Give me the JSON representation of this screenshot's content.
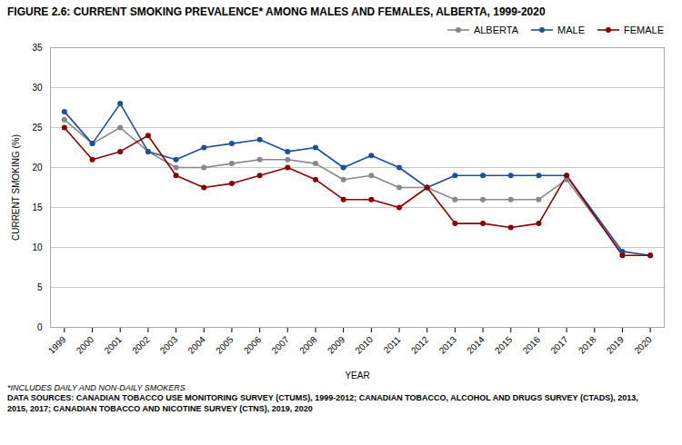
{
  "chart_data": {
    "type": "line",
    "title": "FIGURE 2.6: CURRENT SMOKING PREVALENCE* AMONG MALES AND FEMALES, ALBERTA, 1999-2020",
    "xlabel": "YEAR",
    "ylabel": "CURRENT SMOKING (%)",
    "annotations": [
      "*INCLUDES DAILY AND NON-DAILY SMOKERS",
      "DATA SOURCES: CANADIAN TOBACCO USE MONITORING SURVEY (CTUMS), 1999-2012; CANADIAN TOBACCO, ALCOHOL AND DRUGS SURVEY (CTADS), 2013,\n2015, 2017; CANADIAN TOBACCO AND NICOTINE SURVEY (CTNS), 2019, 2020"
    ],
    "x": [
      1999,
      2000,
      2001,
      2002,
      2003,
      2004,
      2005,
      2006,
      2007,
      2008,
      2009,
      2010,
      2011,
      2012,
      2013,
      2014,
      2015,
      2016,
      2017,
      2019,
      2020
    ],
    "series": [
      {
        "name": "ALBERTA",
        "color": "#888888",
        "marker": "circle",
        "values": [
          26.0,
          23.0,
          25.0,
          22.0,
          20.0,
          20.0,
          20.5,
          21.0,
          21.0,
          20.5,
          18.5,
          19.0,
          17.5,
          17.5,
          16.0,
          16.0,
          16.0,
          16.0,
          18.5,
          9.2,
          null
        ]
      },
      {
        "name": "MALE",
        "color": "#1a4f9c",
        "marker": "circle",
        "values": [
          27.0,
          23.0,
          28.0,
          22.0,
          21.0,
          22.5,
          23.0,
          23.5,
          22.0,
          22.5,
          20.0,
          21.5,
          20.0,
          17.5,
          19.0,
          19.0,
          19.0,
          19.0,
          19.0,
          9.5,
          9.0
        ]
      },
      {
        "name": "FEMALE",
        "color": "#8b0000",
        "marker": "circle",
        "values": [
          25.0,
          21.0,
          22.0,
          24.0,
          19.0,
          17.5,
          18.0,
          19.0,
          20.0,
          18.5,
          16.0,
          16.0,
          15.0,
          17.5,
          13.0,
          13.0,
          12.5,
          13.0,
          19.0,
          9.0,
          9.0
        ]
      }
    ],
    "xlim": [
      1998.5,
      2020.5
    ],
    "xticks": [
      1999,
      2000,
      2001,
      2002,
      2003,
      2004,
      2005,
      2006,
      2007,
      2008,
      2009,
      2010,
      2011,
      2012,
      2013,
      2014,
      2015,
      2016,
      2017,
      2018,
      2019,
      2020
    ],
    "ylim": [
      0,
      35
    ],
    "yticks": [
      0,
      5,
      10,
      15,
      20,
      25,
      30,
      35
    ],
    "grid": true,
    "legend": "upper right"
  }
}
